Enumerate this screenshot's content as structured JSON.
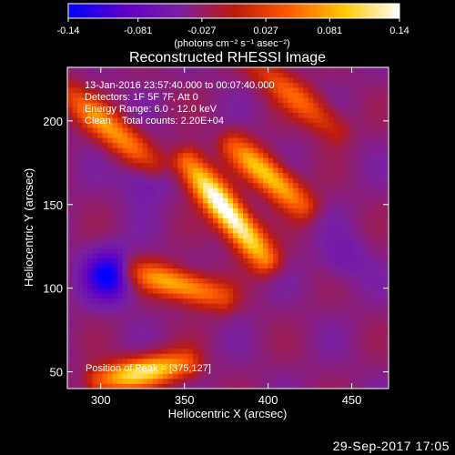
{
  "chart_data": {
    "type": "heatmap",
    "title": "Reconstructed RHESSI Image",
    "xlabel": "Heliocentric X (arcsec)",
    "ylabel": "Heliocentric Y (arcsec)",
    "xlim": [
      280,
      472
    ],
    "ylim": [
      40,
      232
    ],
    "x_ticks": [
      300,
      350,
      400,
      450
    ],
    "y_ticks": [
      50,
      100,
      150,
      200
    ],
    "colorbar": {
      "min": -0.14,
      "max": 0.14,
      "ticks": [
        "-0.14",
        "-0.081",
        "-0.027",
        "0.027",
        "0.081",
        "0.14"
      ],
      "label": "(photons cm⁻² s⁻¹ asec⁻²)",
      "colors": [
        "#0000ff",
        "#5d00c8",
        "#7a20a0",
        "#bb1a10",
        "#ff5a00",
        "#ffc800",
        "#ffffff"
      ]
    },
    "annotations": [
      "13-Jan-2016 23:57:40.000 to 00:07:40.000",
      "Detectors: 1F 5F 7F, Att 0",
      "Energy Range: 6.0 - 12.0 keV",
      "Clean    Total counts: 2.20E+04"
    ],
    "peak_label": "Position of Peak = [375,127]",
    "peak_position": [
      375,
      127
    ],
    "bright_bands": [
      {
        "from": [
          352,
          175
        ],
        "to": [
          398,
          118
        ],
        "peak": 0.14
      },
      {
        "from": [
          380,
          185
        ],
        "to": [
          420,
          150
        ],
        "peak": 0.1
      },
      {
        "from": [
          320,
          110
        ],
        "to": [
          372,
          95
        ],
        "peak": 0.09
      },
      {
        "from": [
          300,
          45
        ],
        "to": [
          350,
          55
        ],
        "peak": 0.11
      },
      {
        "from": [
          282,
          215
        ],
        "to": [
          330,
          175
        ],
        "peak": 0.08
      },
      {
        "from": [
          395,
          232
        ],
        "to": [
          440,
          195
        ],
        "peak": 0.06
      }
    ],
    "dark_spots": [
      {
        "x": 305,
        "y": 108,
        "value": -0.14
      },
      {
        "x": 327,
        "y": 167,
        "value": -0.07
      },
      {
        "x": 445,
        "y": 118,
        "value": -0.06
      }
    ]
  },
  "footer": "29-Sep-2017 17:05"
}
